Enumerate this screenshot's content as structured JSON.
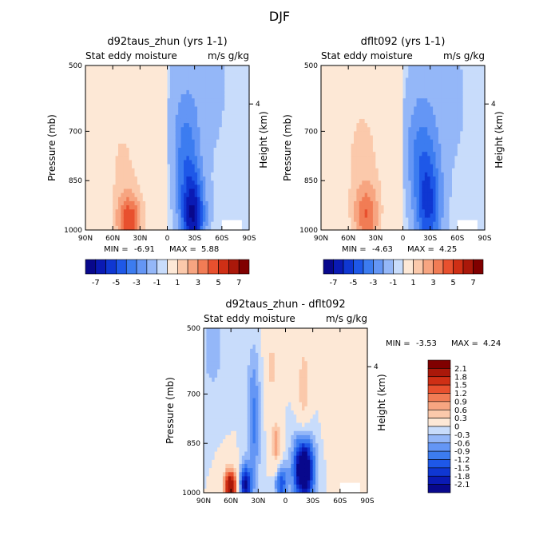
{
  "figure_title": "DJF",
  "colors": {
    "neg": [
      "#08088c",
      "#0a1ab4",
      "#0f37d2",
      "#1e58e8",
      "#3c7cf0",
      "#6496f5",
      "#94b7f8",
      "#c8dcfb",
      "#dbe9fd"
    ],
    "pos": [
      "#fde8d6",
      "#fbc9ab",
      "#f7a581",
      "#f17c55",
      "#e8502e",
      "#cf2f15",
      "#aa180a",
      "#800000"
    ]
  },
  "chart_data": [
    {
      "type": "heatmap",
      "id": "panel1",
      "title": "d92taus_zhun (yrs 1-1)",
      "subtitle_left": "Stat eddy moisture",
      "subtitle_right": "m/s g/kg",
      "xlabel": "",
      "ylabel": "Pressure (mb)",
      "ylabel_right": "Height (km)",
      "x_ticks": [
        "90N",
        "60N",
        "30N",
        "0",
        "30S",
        "60S",
        "90S"
      ],
      "y_ticks": [
        "500",
        "700",
        "850",
        "1000"
      ],
      "y_tick_values": [
        500,
        700,
        850,
        1000
      ],
      "height_ticks": [
        "4"
      ],
      "ylim": [
        500,
        1000
      ],
      "xlim": [
        90,
        -90
      ],
      "min_label": "MIN =",
      "min_value": "-6.91",
      "max_label": "MAX =",
      "max_value": "5.88",
      "colorbar_ticks": [
        "-7",
        "-5",
        "-3",
        "-1",
        "1",
        "3",
        "5",
        "7"
      ],
      "colorbar_levels": [
        -8,
        -7,
        -6,
        -5,
        -4,
        -3,
        -2,
        -1,
        0,
        1,
        2,
        3,
        4,
        5,
        6,
        7,
        8
      ],
      "features": [
        {
          "lat": 42,
          "p": 975,
          "amp": 4.5,
          "sx": 10,
          "sp": 60
        },
        {
          "lat": 50,
          "p": 780,
          "amp": 1.5,
          "sx": 25,
          "sp": 180
        },
        {
          "lat": -28,
          "p": 960,
          "amp": -6.0,
          "sx": 9,
          "sp": 90
        },
        {
          "lat": -20,
          "p": 770,
          "amp": -2.5,
          "sx": 10,
          "sp": 120
        },
        {
          "lat": -35,
          "p": 560,
          "amp": -0.8,
          "sx": 30,
          "sp": 200
        }
      ],
      "base": {
        "north": 0.6,
        "south": -0.6
      }
    },
    {
      "type": "heatmap",
      "id": "panel2",
      "title": "dflt092 (yrs 1-1)",
      "subtitle_left": "Stat eddy moisture",
      "subtitle_right": "m/s g/kg",
      "xlabel": "",
      "ylabel": "Pressure (mb)",
      "ylabel_right": "Height (km)",
      "x_ticks": [
        "90N",
        "60N",
        "30N",
        "0",
        "30S",
        "60S",
        "90S"
      ],
      "y_ticks": [
        "500",
        "700",
        "850",
        "1000"
      ],
      "y_tick_values": [
        500,
        700,
        850,
        1000
      ],
      "height_ticks": [
        "4"
      ],
      "ylim": [
        500,
        1000
      ],
      "xlim": [
        90,
        -90
      ],
      "min_label": "MIN =",
      "min_value": "-4.63",
      "max_label": "MAX =",
      "max_value": "4.25",
      "colorbar_ticks": [
        "-7",
        "-5",
        "-3",
        "-1",
        "1",
        "3",
        "5",
        "7"
      ],
      "colorbar_levels": [
        -8,
        -7,
        -6,
        -5,
        -4,
        -3,
        -2,
        -1,
        0,
        1,
        2,
        3,
        4,
        5,
        6,
        7,
        8
      ],
      "features": [
        {
          "lat": 40,
          "p": 960,
          "amp": 3.5,
          "sx": 10,
          "sp": 70
        },
        {
          "lat": 45,
          "p": 760,
          "amp": 1.6,
          "sx": 25,
          "sp": 200
        },
        {
          "lat": -28,
          "p": 930,
          "amp": -4.2,
          "sx": 10,
          "sp": 110
        },
        {
          "lat": -18,
          "p": 760,
          "amp": -2.0,
          "sx": 12,
          "sp": 120
        },
        {
          "lat": -40,
          "p": 600,
          "amp": -0.8,
          "sx": 30,
          "sp": 200
        }
      ],
      "base": {
        "north": 0.6,
        "south": -0.6
      }
    },
    {
      "type": "heatmap",
      "id": "panel3",
      "title": "d92taus_zhun - dflt092",
      "subtitle_left": "Stat eddy moisture",
      "subtitle_right": "m/s g/kg",
      "xlabel": "",
      "ylabel": "Pressure (mb)",
      "ylabel_right": "Height (km)",
      "x_ticks": [
        "90N",
        "60N",
        "30N",
        "0",
        "30S",
        "60S",
        "90S"
      ],
      "y_ticks": [
        "500",
        "700",
        "850",
        "1000"
      ],
      "y_tick_values": [
        500,
        700,
        850,
        1000
      ],
      "height_ticks": [
        "4"
      ],
      "ylim": [
        500,
        1000
      ],
      "xlim": [
        90,
        -90
      ],
      "min_label": "MIN =",
      "min_value": "-3.53",
      "max_label": "MAX =",
      "max_value": "4.24",
      "colorbar_ticks": [
        "2.1",
        "1.8",
        "1.5",
        "1.2",
        "0.9",
        "0.6",
        "0.3",
        "0",
        "-0.3",
        "-0.6",
        "-0.9",
        "-1.2",
        "-1.5",
        "-1.8",
        "-2.1"
      ],
      "colorbar_levels": [
        -2.4,
        -2.1,
        -1.8,
        -1.5,
        -1.2,
        -0.9,
        -0.6,
        -0.3,
        0,
        0.3,
        0.6,
        0.9,
        1.2,
        1.5,
        1.8,
        2.1,
        2.4
      ],
      "features": [
        {
          "lat": 60,
          "p": 980,
          "amp": 2.6,
          "sx": 6,
          "sp": 40
        },
        {
          "lat": 45,
          "p": 975,
          "amp": -2.2,
          "sx": 5,
          "sp": 40
        },
        {
          "lat": 35,
          "p": 780,
          "amp": -1.0,
          "sx": 5,
          "sp": 150
        },
        {
          "lat": 10,
          "p": 860,
          "amp": 1.1,
          "sx": 4,
          "sp": 60
        },
        {
          "lat": 5,
          "p": 970,
          "amp": -1.5,
          "sx": 5,
          "sp": 40
        },
        {
          "lat": -20,
          "p": 930,
          "amp": -3.0,
          "sx": 8,
          "sp": 70
        },
        {
          "lat": -20,
          "p": 680,
          "amp": 0.9,
          "sx": 5,
          "sp": 100
        },
        {
          "lat": 15,
          "p": 620,
          "amp": 0.7,
          "sx": 5,
          "sp": 100
        },
        {
          "lat": -50,
          "p": 600,
          "amp": 0.5,
          "sx": 6,
          "sp": 150
        },
        {
          "lat": 80,
          "p": 560,
          "amp": -0.5,
          "sx": 8,
          "sp": 100
        }
      ],
      "base": {
        "north": 0.0,
        "south": 0.0
      }
    }
  ]
}
